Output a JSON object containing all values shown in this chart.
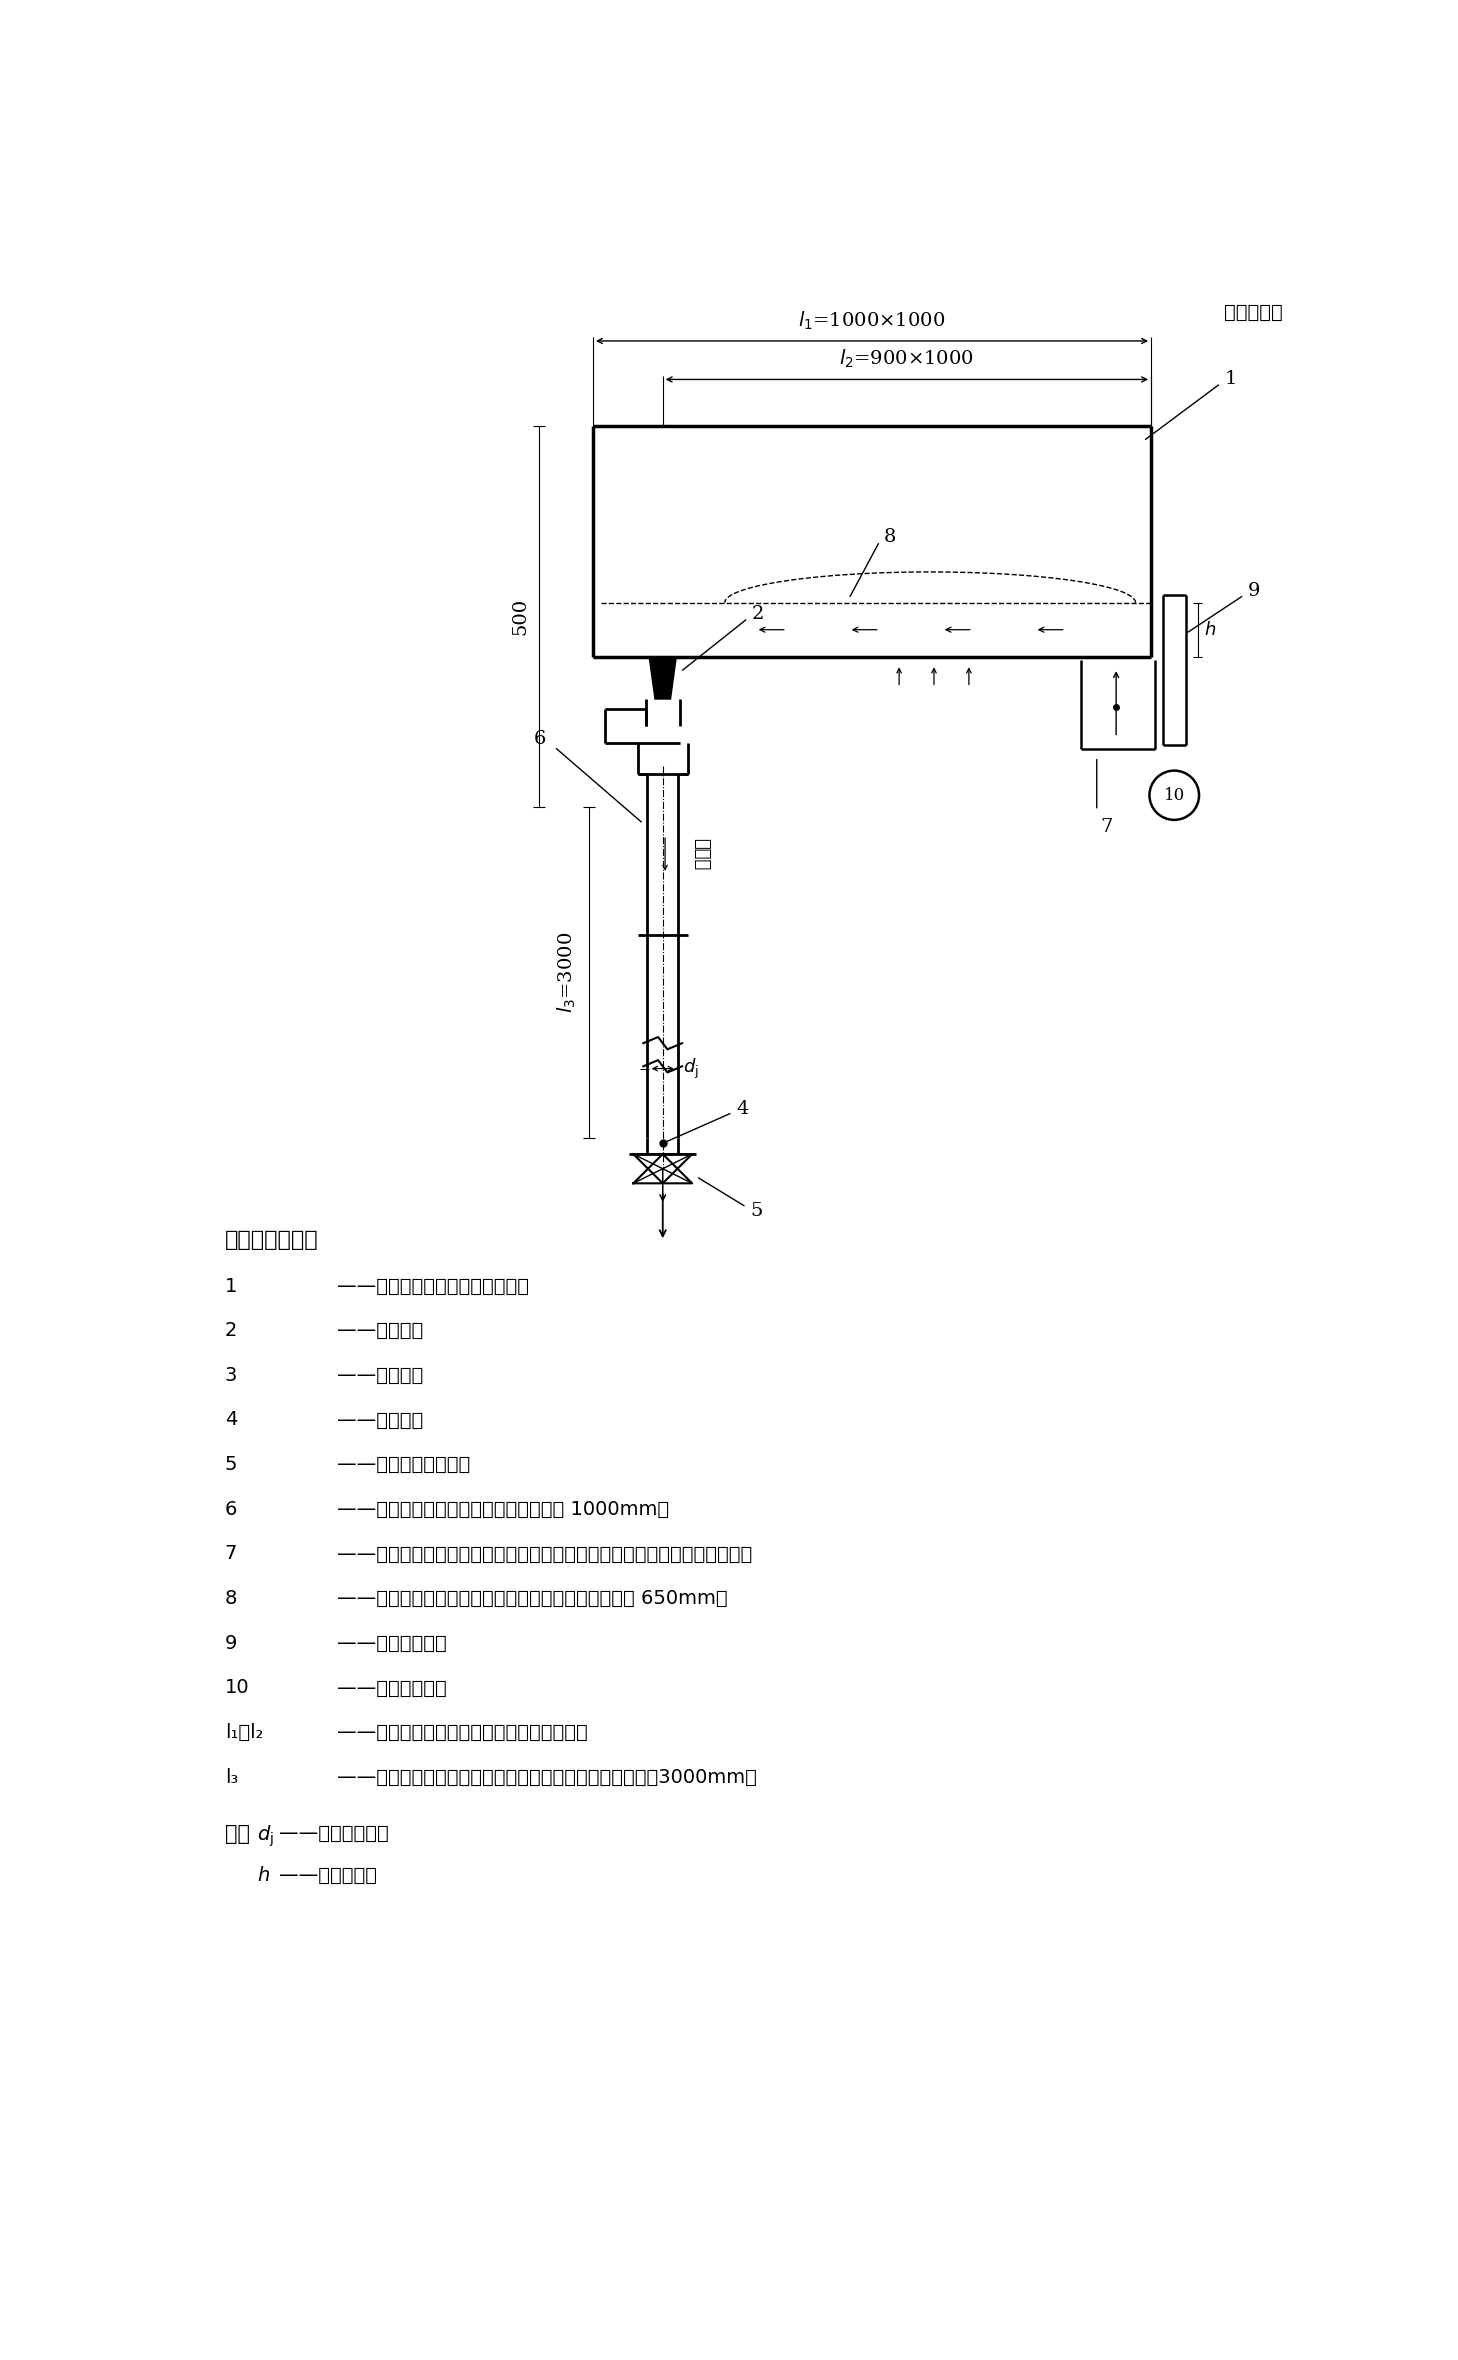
{
  "unit_label": "单位为毫米",
  "bg_color": "#ffffff",
  "legend_header": "标引序号说明：",
  "legend_items": [
    [
      "1",
      "——测试水槽，槽底应水平安装；"
    ],
    [
      "2",
      "——雨水斗；"
    ],
    [
      "3",
      "——承雨斗；"
    ],
    [
      "4",
      "——排水管；"
    ],
    [
      "5",
      "——排水管末节流阀；"
    ],
    [
      "6",
      "——透明管，内径与所配管内径相同，长 1000mm；"
    ],
    [
      "7",
      "——进水管，四个，靠近测试水槽雨水斗安装一侧布，且要求流量分配均匀；"
    ],
    [
      "8",
      "——斗前水深测试取压孔，距测试水槽雨水斗安装一侧 650mm；"
    ],
    [
      "9",
      "——玻璃水位计；"
    ],
    [
      "10",
      "——压力传感器；"
    ],
    [
      "l₁、l₂",
      "——测试水槽尺寸，图上标注尺寸为最小值；"
    ],
    [
      "l₃",
      "——雨水斗连接压板上沿与排水管末端出口之间的高度差，3000mm。"
    ]
  ]
}
